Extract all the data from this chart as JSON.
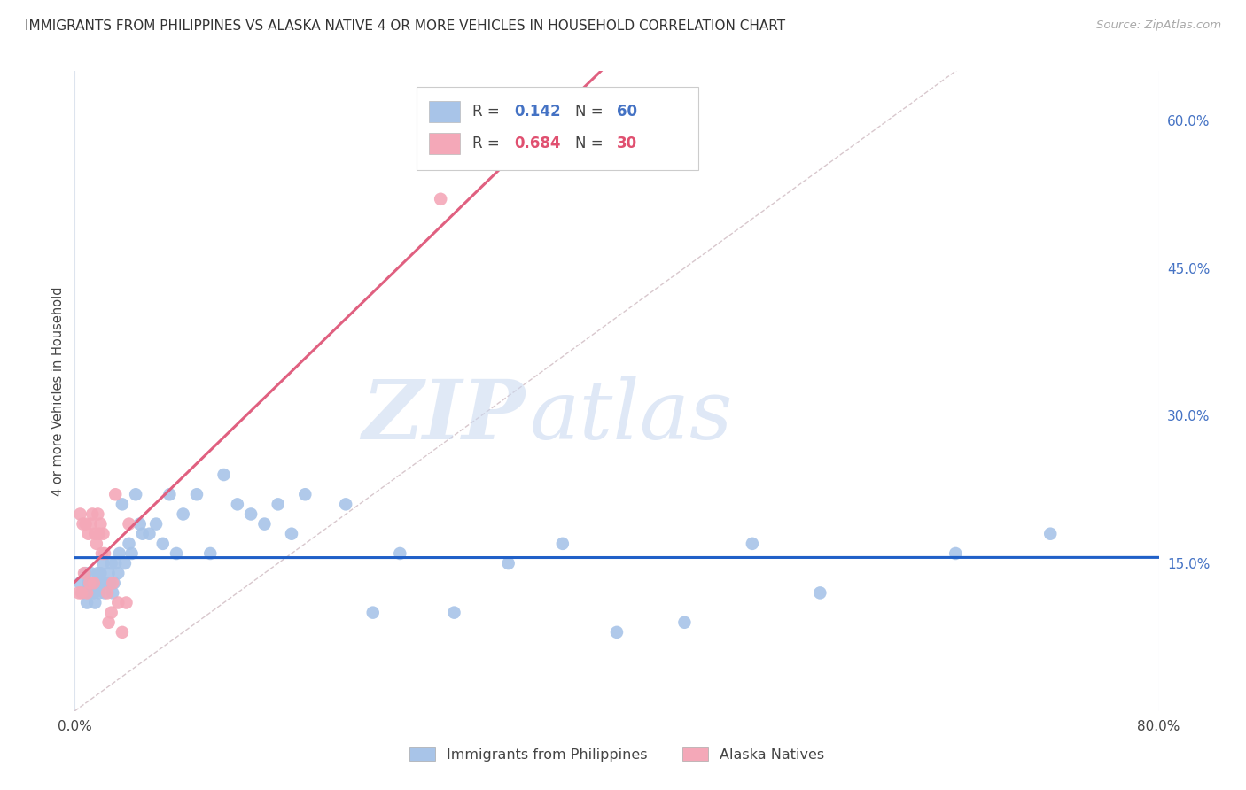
{
  "title": "IMMIGRANTS FROM PHILIPPINES VS ALASKA NATIVE 4 OR MORE VEHICLES IN HOUSEHOLD CORRELATION CHART",
  "source": "Source: ZipAtlas.com",
  "ylabel": "4 or more Vehicles in Household",
  "xlim": [
    0.0,
    0.8
  ],
  "ylim": [
    0.0,
    0.65
  ],
  "yticks_right": [
    0.15,
    0.3,
    0.45,
    0.6
  ],
  "ytick_labels_right": [
    "15.0%",
    "30.0%",
    "45.0%",
    "60.0%"
  ],
  "legend_blue_r": "0.142",
  "legend_blue_n": "60",
  "legend_pink_r": "0.684",
  "legend_pink_n": "30",
  "legend_blue_label": "Immigrants from Philippines",
  "legend_pink_label": "Alaska Natives",
  "blue_color": "#a8c4e8",
  "pink_color": "#f4a8b8",
  "blue_line_color": "#2060c8",
  "pink_line_color": "#e06080",
  "diag_color": "#c8b0b8",
  "watermark_zip": "ZIP",
  "watermark_atlas": "atlas",
  "blue_scatter_x": [
    0.004,
    0.006,
    0.008,
    0.009,
    0.01,
    0.011,
    0.012,
    0.013,
    0.014,
    0.015,
    0.016,
    0.017,
    0.018,
    0.019,
    0.02,
    0.021,
    0.022,
    0.023,
    0.025,
    0.026,
    0.027,
    0.028,
    0.029,
    0.03,
    0.032,
    0.033,
    0.035,
    0.037,
    0.04,
    0.042,
    0.045,
    0.048,
    0.05,
    0.055,
    0.06,
    0.065,
    0.07,
    0.075,
    0.08,
    0.09,
    0.1,
    0.11,
    0.12,
    0.13,
    0.14,
    0.15,
    0.16,
    0.17,
    0.2,
    0.22,
    0.24,
    0.28,
    0.32,
    0.36,
    0.4,
    0.45,
    0.5,
    0.55,
    0.65,
    0.72
  ],
  "blue_scatter_y": [
    0.13,
    0.12,
    0.14,
    0.11,
    0.13,
    0.12,
    0.14,
    0.13,
    0.12,
    0.11,
    0.13,
    0.14,
    0.12,
    0.14,
    0.13,
    0.15,
    0.12,
    0.13,
    0.14,
    0.13,
    0.15,
    0.12,
    0.13,
    0.15,
    0.14,
    0.16,
    0.21,
    0.15,
    0.17,
    0.16,
    0.22,
    0.19,
    0.18,
    0.18,
    0.19,
    0.17,
    0.22,
    0.16,
    0.2,
    0.22,
    0.16,
    0.24,
    0.21,
    0.2,
    0.19,
    0.21,
    0.18,
    0.22,
    0.21,
    0.1,
    0.16,
    0.1,
    0.15,
    0.17,
    0.08,
    0.09,
    0.17,
    0.12,
    0.16,
    0.18
  ],
  "pink_scatter_x": [
    0.003,
    0.004,
    0.005,
    0.006,
    0.007,
    0.008,
    0.009,
    0.01,
    0.011,
    0.012,
    0.013,
    0.014,
    0.015,
    0.016,
    0.017,
    0.018,
    0.019,
    0.02,
    0.021,
    0.022,
    0.024,
    0.025,
    0.027,
    0.028,
    0.03,
    0.032,
    0.035,
    0.038,
    0.04,
    0.27
  ],
  "pink_scatter_y": [
    0.12,
    0.2,
    0.12,
    0.19,
    0.14,
    0.19,
    0.12,
    0.18,
    0.13,
    0.19,
    0.2,
    0.13,
    0.18,
    0.17,
    0.2,
    0.18,
    0.19,
    0.16,
    0.18,
    0.16,
    0.12,
    0.09,
    0.1,
    0.13,
    0.22,
    0.11,
    0.08,
    0.11,
    0.19,
    0.52
  ]
}
